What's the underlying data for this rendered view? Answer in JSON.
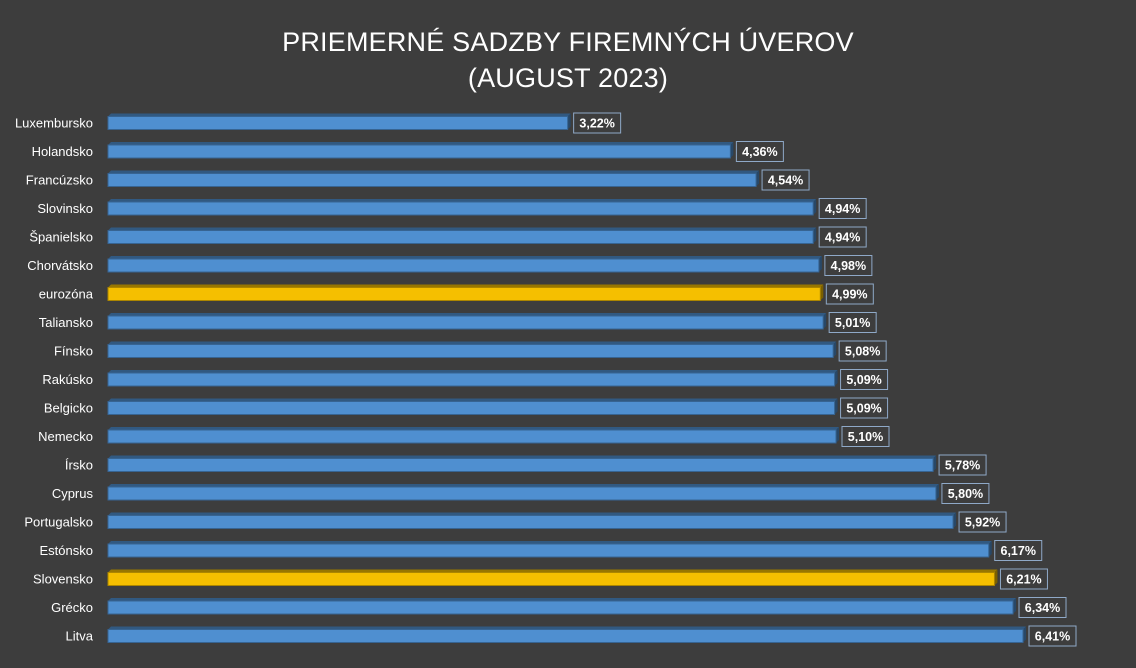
{
  "chart_data": {
    "type": "bar",
    "orientation": "horizontal",
    "title": "PRIEMERNÉ SADZBY FIREMNÝCH ÚVEROV",
    "subtitle": "(AUGUST 2023)",
    "categories": [
      "Luxembursko",
      "Holandsko",
      "Francúzsko",
      "Slovinsko",
      "Španielsko",
      "Chorvátsko",
      "eurozóna",
      "Taliansko",
      "Fínsko",
      "Rakúsko",
      "Belgicko",
      "Nemecko",
      "Írsko",
      "Cyprus",
      "Portugalsko",
      "Estónsko",
      "Slovensko",
      "Grécko",
      "Litva"
    ],
    "values": [
      3.22,
      4.36,
      4.54,
      4.94,
      4.94,
      4.98,
      4.99,
      5.01,
      5.08,
      5.09,
      5.09,
      5.1,
      5.78,
      5.8,
      5.92,
      6.17,
      6.21,
      6.34,
      6.41
    ],
    "value_labels": [
      "3,22%",
      "4,36%",
      "4,54%",
      "4,94%",
      "4,94%",
      "4,98%",
      "4,99%",
      "5,01%",
      "5,08%",
      "5,09%",
      "5,09%",
      "5,10%",
      "5,78%",
      "5,80%",
      "5,92%",
      "6,17%",
      "6,21%",
      "6,34%",
      "6,41%"
    ],
    "highlighted": [
      "eurozóna",
      "Slovensko"
    ],
    "xlim": [
      0,
      6.41
    ],
    "grid": false,
    "legend": "none",
    "colors": {
      "background": "#3d3d3d",
      "bar": "#4f8fd0",
      "highlight": "#f5bf00",
      "text": "#ffffff"
    }
  }
}
